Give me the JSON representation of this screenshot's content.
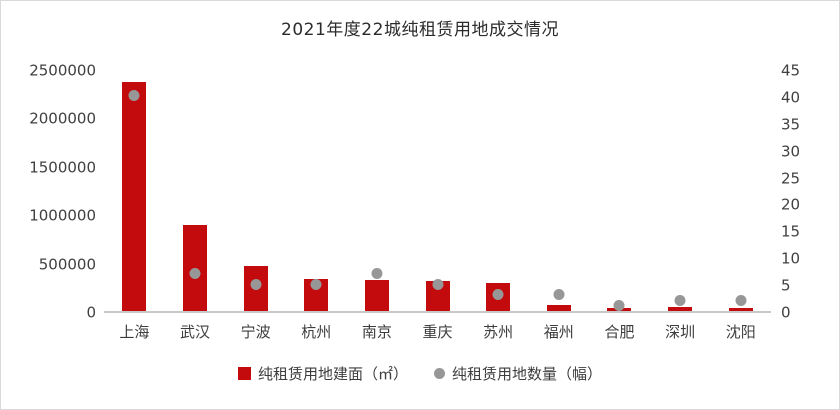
{
  "title": "2021年度22城纯租赁用地成交情况",
  "colors": {
    "bar": "#c30a0c",
    "dot": "#979797",
    "axis_text": "#404040",
    "axis_line": "#c9c9c9",
    "background": "#ffffff"
  },
  "axes": {
    "left_ticks": [
      "2500000",
      "2000000",
      "1500000",
      "1000000",
      "500000",
      "0"
    ],
    "right_ticks": [
      "45",
      "40",
      "35",
      "30",
      "25",
      "20",
      "15",
      "10",
      "5",
      "0"
    ]
  },
  "legend": {
    "area": {
      "label": "纯租赁用地建面（㎡）",
      "marker": "square"
    },
    "count": {
      "label": "纯租赁用地数量（幅）",
      "marker": "circle"
    }
  },
  "chart_data": {
    "type": "bar",
    "title": "2021年度22城纯租赁用地成交情况",
    "categories": [
      "上海",
      "武汉",
      "宁波",
      "杭州",
      "南京",
      "重庆",
      "苏州",
      "福州",
      "合肥",
      "深圳",
      "沈阳"
    ],
    "series": [
      {
        "name": "纯租赁用地建面（㎡）",
        "type": "bar",
        "axis": "left",
        "values": [
          2370000,
          890000,
          460000,
          330000,
          320000,
          310000,
          290000,
          60000,
          35000,
          40000,
          35000
        ]
      },
      {
        "name": "纯租赁用地数量（幅）",
        "type": "scatter",
        "axis": "right",
        "values": [
          40,
          7,
          5,
          5,
          7,
          5,
          3,
          3,
          1,
          2,
          2
        ]
      }
    ],
    "left_axis": {
      "min": 0,
      "max": 2500000,
      "step": 500000,
      "label": "纯租赁用地建面（㎡）"
    },
    "right_axis": {
      "min": 0,
      "max": 45,
      "step": 5,
      "label": "纯租赁用地数量（幅）"
    },
    "grid": false,
    "legend_position": "bottom"
  }
}
